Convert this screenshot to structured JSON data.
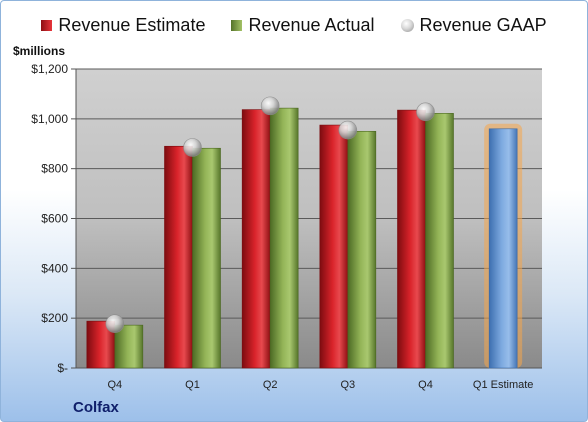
{
  "chart_data": {
    "type": "bar",
    "ylabel": "$millions",
    "company": "Colfax",
    "categories": [
      "Q4",
      "Q1",
      "Q2",
      "Q3",
      "Q4",
      "Q1 Estimate"
    ],
    "ylim": [
      0,
      1200
    ],
    "yticks": [
      0,
      200,
      400,
      600,
      800,
      1000,
      1200
    ],
    "ytick_labels": [
      "$-",
      "$200",
      "$400",
      "$600",
      "$800",
      "$1,000",
      "$1,200"
    ],
    "grid": true,
    "legend_position": "top",
    "series": [
      {
        "name": "Revenue Estimate",
        "kind": "bar",
        "color": "#c8151b",
        "values": [
          188,
          890,
          1037,
          975,
          1035,
          null
        ]
      },
      {
        "name": "Revenue Actual",
        "kind": "bar",
        "color": "#8aaa4c",
        "values": [
          172,
          882,
          1043,
          950,
          1022,
          960
        ]
      },
      {
        "name": "Revenue GAAP",
        "kind": "marker",
        "color": "#bdbdbd",
        "values": [
          178,
          885,
          1052,
          955,
          1028,
          null
        ]
      }
    ],
    "forecast_bar": {
      "category": "Q1 Estimate",
      "color": "#6f9fd8",
      "glow_color": "#f5a54a"
    }
  }
}
